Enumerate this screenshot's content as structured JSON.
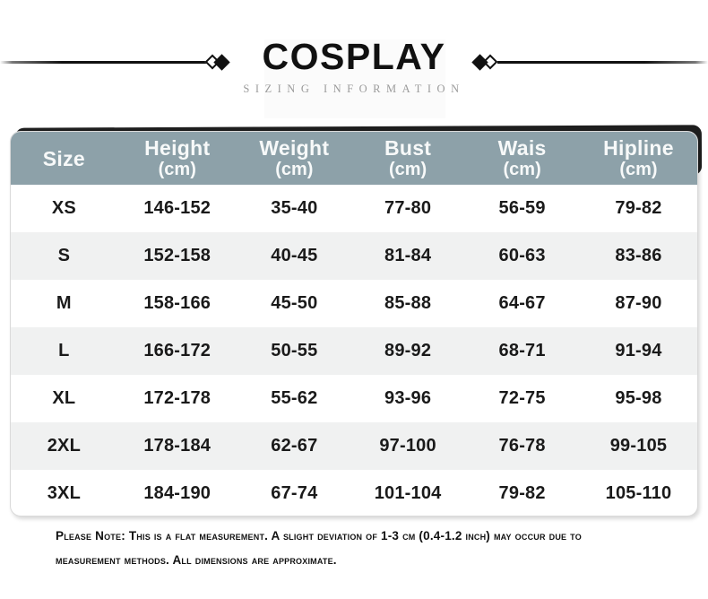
{
  "header": {
    "title": "COSPLAY",
    "subtitle": "SIZING INFORMATION"
  },
  "decor": {
    "left_divider": "line with outline and filled diamonds",
    "right_divider": "filled and outline diamonds with line"
  },
  "table": {
    "columns": [
      {
        "label": "Size",
        "unit": ""
      },
      {
        "label": "Height",
        "unit": "(cm)"
      },
      {
        "label": "Weight",
        "unit": "(cm)"
      },
      {
        "label": "Bust",
        "unit": "(cm)"
      },
      {
        "label": "Wais",
        "unit": "(cm)"
      },
      {
        "label": "Hipline",
        "unit": "(cm)"
      }
    ],
    "rows": [
      [
        "XS",
        "146-152",
        "35-40",
        "77-80",
        "56-59",
        "79-82"
      ],
      [
        "S",
        "152-158",
        "40-45",
        "81-84",
        "60-63",
        "83-86"
      ],
      [
        "M",
        "158-166",
        "45-50",
        "85-88",
        "64-67",
        "87-90"
      ],
      [
        "L",
        "166-172",
        "50-55",
        "89-92",
        "68-71",
        "91-94"
      ],
      [
        "XL",
        "172-178",
        "55-62",
        "93-96",
        "72-75",
        "95-98"
      ],
      [
        "2XL",
        "178-184",
        "62-67",
        "97-100",
        "76-78",
        "99-105"
      ],
      [
        "3XL",
        "184-190",
        "67-74",
        "101-104",
        "79-82",
        "105-110"
      ]
    ]
  },
  "note": {
    "line1": "Please Note: This is a flat measurement. A slight deviation of 1-3 cm (0.4-1.2 inch) may occur due to",
    "line2": "measurement methods. All dimensions are approximate."
  },
  "colors": {
    "header_bg": "#8DA1A9",
    "row_stripe": "#F0F1F1",
    "backing_bar": "#1E1E1E",
    "subtitle_text": "#9B9B9B",
    "body_text": "#1A1A1A"
  }
}
